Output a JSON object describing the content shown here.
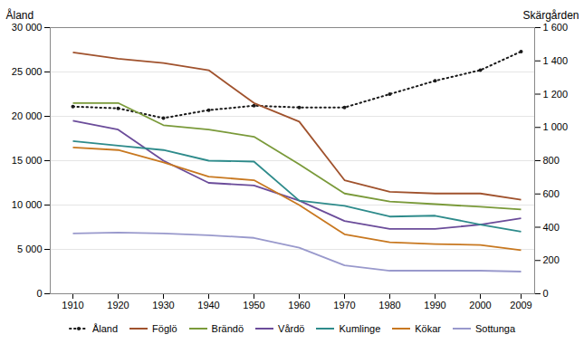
{
  "chart_data": {
    "type": "line",
    "ylabel": "Åland",
    "y2label": "Skärgården",
    "x": [
      1910,
      1920,
      1930,
      1940,
      1950,
      1960,
      1970,
      1980,
      1990,
      2000,
      2009
    ],
    "series": [
      {
        "name": "Åland",
        "color": "#1a1a1a",
        "line_style": "dotted",
        "marker": "circle",
        "values": [
          21100,
          20900,
          19800,
          20700,
          21200,
          21000,
          21000,
          22500,
          24000,
          25200,
          27300
        ]
      },
      {
        "name": "Föglö",
        "color": "#a0522d",
        "line_style": "solid",
        "values": [
          27200,
          26500,
          26000,
          25200,
          21500,
          19400,
          12800,
          11500,
          11300,
          11300,
          10600
        ]
      },
      {
        "name": "Brändö",
        "color": "#7a9a3a",
        "line_style": "solid",
        "values": [
          21500,
          21500,
          19000,
          18500,
          17700,
          14600,
          11300,
          10400,
          10100,
          9800,
          9500
        ]
      },
      {
        "name": "Vårdö",
        "color": "#6b4c9a",
        "line_style": "solid",
        "values": [
          19500,
          18500,
          15000,
          12500,
          12200,
          10500,
          8200,
          7300,
          7300,
          7800,
          8500
        ]
      },
      {
        "name": "Kumlinge",
        "color": "#2e8b8b",
        "line_style": "solid",
        "values": [
          17200,
          16700,
          16200,
          15000,
          14900,
          10500,
          9900,
          8700,
          8800,
          7800,
          7000
        ]
      },
      {
        "name": "Kökar",
        "color": "#c87820",
        "line_style": "solid",
        "values": [
          16500,
          16200,
          14800,
          13200,
          12800,
          10000,
          6700,
          5800,
          5600,
          5500,
          4900
        ]
      },
      {
        "name": "Sottunga",
        "color": "#9999cc",
        "line_style": "solid",
        "values": [
          6800,
          6900,
          6800,
          6600,
          6300,
          5200,
          3200,
          2600,
          2600,
          2600,
          2500
        ]
      }
    ],
    "xlim": [
      1905,
      2012
    ],
    "xticks": [
      1910,
      1920,
      1930,
      1940,
      1950,
      1960,
      1970,
      1980,
      1990,
      2000,
      2009
    ],
    "ylim": [
      0,
      30000
    ],
    "yticks": [
      0,
      {
        "value": 5000,
        "label": "5 000"
      },
      {
        "value": 10000,
        "label": "10 000"
      },
      {
        "value": 15000,
        "label": "15 000"
      },
      {
        "value": 20000,
        "label": "20 000"
      },
      {
        "value": 25000,
        "label": "25 000"
      },
      {
        "value": 30000,
        "label": "30 000"
      }
    ],
    "y2lim": [
      0,
      1600
    ],
    "y2ticks": [
      0,
      200,
      400,
      600,
      800,
      {
        "value": 1000,
        "label": "1 000"
      },
      {
        "value": 1200,
        "label": "1 200"
      },
      {
        "value": 1400,
        "label": "1 400"
      },
      {
        "value": 1600,
        "label": "1 600"
      }
    ],
    "grid": "y",
    "legend": "bottom"
  }
}
